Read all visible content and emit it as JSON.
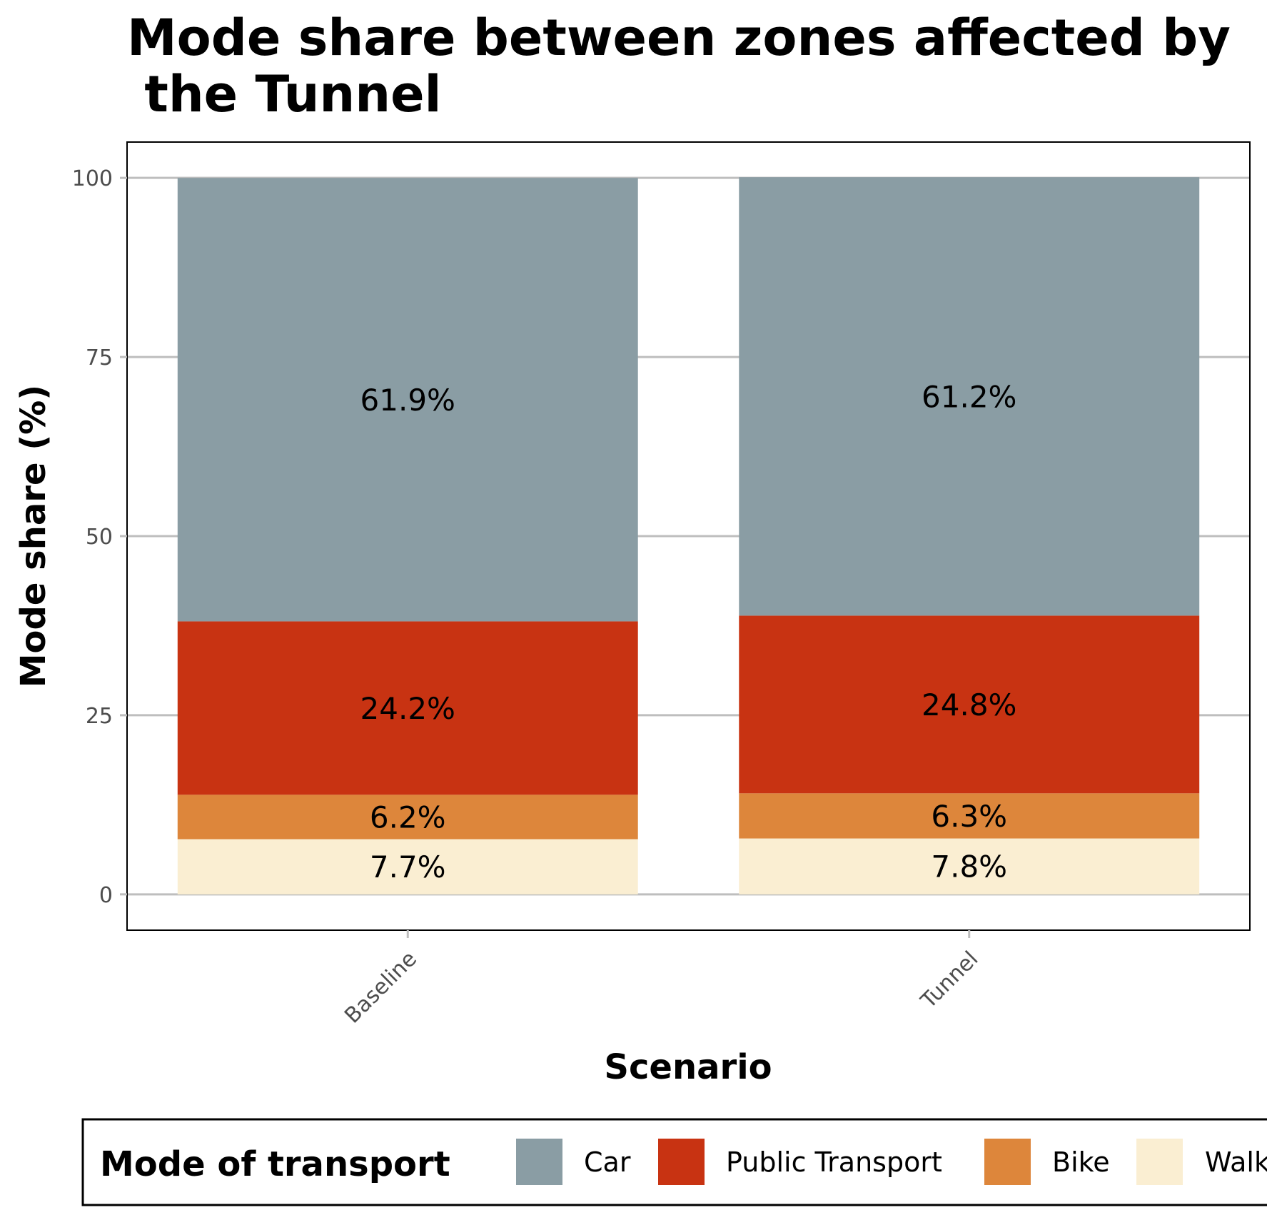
{
  "chart_data": {
    "type": "bar",
    "stacked": true,
    "title_lines": [
      "Mode share between zones affected by",
      " the Tunnel"
    ],
    "xlabel": "Scenario",
    "ylabel": "Mode share (%)",
    "ylim": [
      -5,
      105
    ],
    "yticks": [
      0,
      25,
      50,
      75,
      100
    ],
    "grid": "horizontal",
    "categories": [
      "Baseline",
      "Tunnel"
    ],
    "series": [
      {
        "name": "Walk",
        "color": "#FAEED2",
        "values": [
          7.7,
          7.8
        ],
        "labels": [
          "7.7%",
          "7.8%"
        ]
      },
      {
        "name": "Bike",
        "color": "#DD863B",
        "values": [
          6.2,
          6.3
        ],
        "labels": [
          "6.2%",
          "6.3%"
        ]
      },
      {
        "name": "Public Transport",
        "color": "#C83312",
        "values": [
          24.2,
          24.8
        ],
        "labels": [
          "24.2%",
          "24.8%"
        ]
      },
      {
        "name": "Car",
        "color": "#8A9DA4",
        "values": [
          61.9,
          61.2
        ],
        "labels": [
          "61.9%",
          "61.2%"
        ]
      }
    ],
    "legend": {
      "title": "Mode of transport",
      "position": "bottom",
      "order": [
        "Car",
        "Public Transport",
        "Bike",
        "Walk"
      ]
    }
  }
}
